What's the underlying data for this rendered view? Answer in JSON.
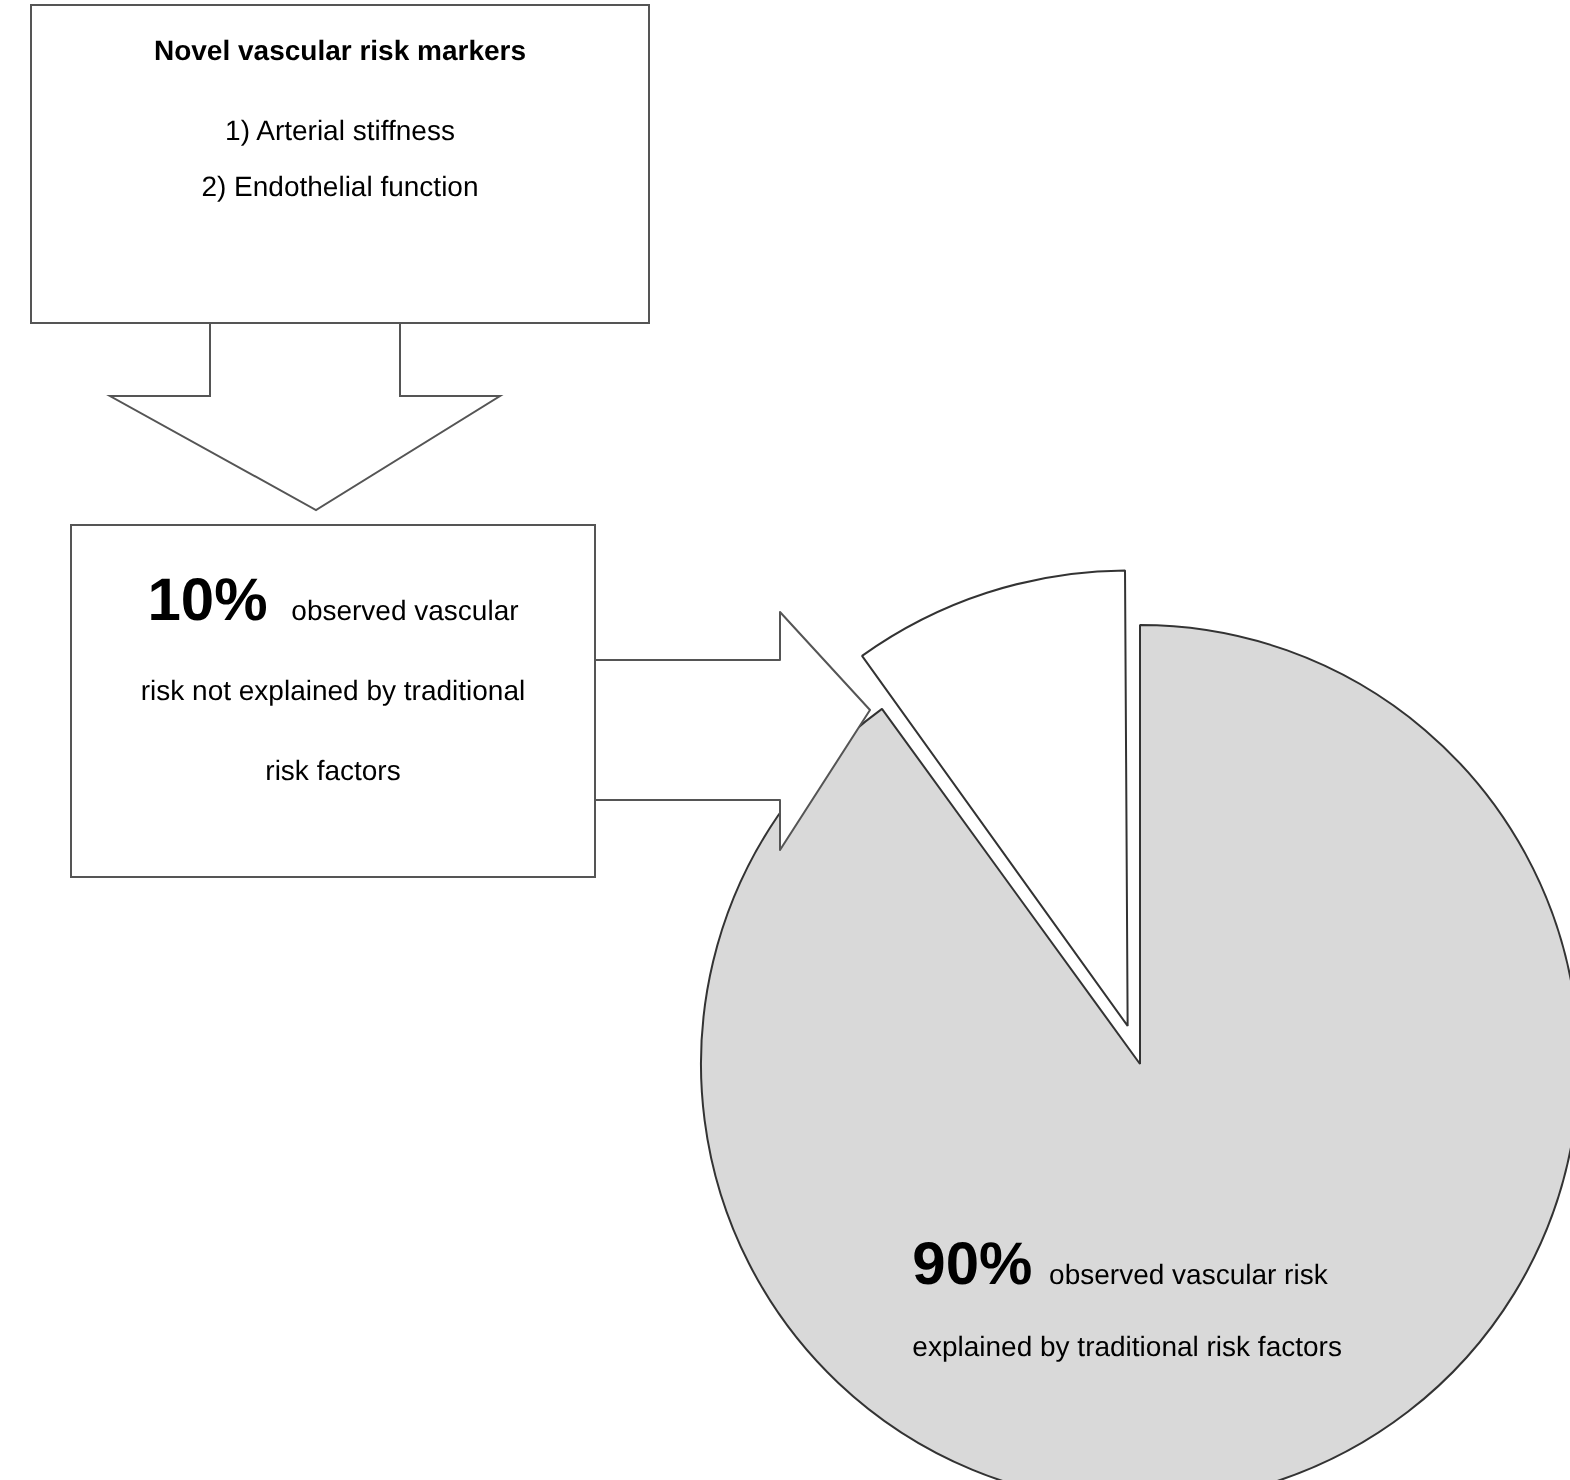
{
  "chart_data": {
    "type": "pie",
    "title": "Novel vascular risk markers",
    "annotations": [
      "1) Arterial stiffness",
      "2) Endothelial function",
      "10% observed vascular risk not explained by traditional risk factors"
    ],
    "categories": [
      "observed vascular risk explained by traditional risk factors",
      null
    ],
    "values": [
      90,
      10
    ],
    "value_labels": [
      "90%",
      null
    ],
    "colors": [
      "#d9d9d9",
      "#ffffff"
    ]
  }
}
